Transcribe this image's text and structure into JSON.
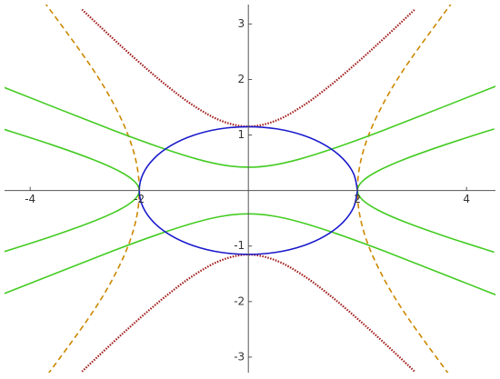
{
  "chart_data": {
    "type": "line",
    "xlim": [
      -4.47,
      4.53
    ],
    "ylim": [
      -3.28,
      3.35
    ],
    "xticks": [
      -4,
      -2,
      2,
      4
    ],
    "yticks": [
      -3,
      -2,
      -1,
      1,
      2,
      3
    ],
    "series": [
      {
        "color": "#cc8800",
        "dash": "dashed",
        "x": [
          3.777,
          2.866,
          2.371,
          2.091,
          2,
          2.091,
          2.371,
          2.866,
          3.777,
          null,
          -3.777,
          -2.866,
          -2.371,
          -2.091,
          -2,
          -2.091,
          -2.371,
          -2.866,
          -3.777
        ],
        "values": [
          -3.444,
          -2.207,
          -1.369,
          -0.655,
          0,
          0.655,
          1.369,
          2.207,
          3.444,
          null,
          -3.444,
          -2.207,
          -1.369,
          -0.655,
          0,
          0.655,
          1.369,
          2.207,
          3.444
        ]
      },
      {
        "color": "#44cc22",
        "dash": "solid",
        "x": [
          4.506,
          3.621,
          2.866,
          2.371,
          2.091,
          2,
          2.091,
          2.371,
          2.866,
          3.621,
          4.506,
          null,
          -4.506,
          -3.621,
          -2.866,
          -2.371,
          -2.091,
          -2,
          -2.091,
          -2.371,
          -2.866,
          -3.621,
          -4.506
        ],
        "values": [
          -1.11,
          -0.83,
          -0.565,
          -0.35,
          -0.167,
          0,
          0.167,
          0.35,
          0.565,
          0.83,
          1.11,
          null,
          -1.11,
          -0.83,
          -0.565,
          -0.35,
          -0.167,
          0,
          0.167,
          0.35,
          0.565,
          0.83,
          1.11
        ]
      },
      {
        "color": "#44cc22",
        "dash": "solid",
        "x": [
          -4.541,
          -2.471,
          -1.57,
          -0.924,
          -0.427,
          0,
          0.427,
          0.924,
          1.57,
          2.471,
          4.541,
          null,
          -4.541,
          -2.471,
          -1.57,
          -0.924,
          -0.427,
          0,
          0.427,
          0.924,
          1.57,
          2.471,
          4.541
        ],
        "values": [
          1.881,
          1.083,
          0.761,
          0.562,
          0.454,
          0.42,
          0.454,
          0.562,
          0.761,
          1.083,
          1.881,
          null,
          -1.881,
          -1.083,
          -0.761,
          -0.562,
          -0.454,
          -0.42,
          -0.454,
          -0.562,
          -0.761,
          -1.083,
          -1.881
        ]
      },
      {
        "color": "#a01818",
        "dash": "dotted",
        "x": [
          -3.05,
          -2.5,
          -2,
          -1.5,
          -1,
          -0.5,
          0,
          0.5,
          1,
          1.5,
          2,
          2.5,
          3.05,
          null,
          -3.05,
          -2.5,
          -2,
          -1.5,
          -1,
          -0.5,
          0,
          0.5,
          1,
          1.5,
          2,
          2.5,
          3.05
        ],
        "values": [
          3.26,
          2.753,
          2.309,
          1.892,
          1.526,
          1.257,
          1.153,
          1.257,
          1.526,
          1.892,
          2.309,
          2.753,
          3.26,
          null,
          -3.26,
          -2.753,
          -2.309,
          -1.892,
          -1.526,
          -1.257,
          -1.153,
          -1.257,
          -1.526,
          -1.892,
          -2.309,
          -2.753,
          -3.26
        ]
      },
      {
        "color": "#1a1acc",
        "dash": "solid",
        "x": [
          2,
          1.932,
          1.732,
          1.414,
          1,
          0.518,
          0,
          -0.518,
          -1,
          -1.414,
          -1.732,
          -1.932,
          -2,
          -1.932,
          -1.732,
          -1.414,
          -1,
          -0.518,
          0,
          0.518,
          1,
          1.414,
          1.732,
          1.932,
          2
        ],
        "values": [
          0,
          0.298,
          0.575,
          0.813,
          0.996,
          1.111,
          1.15,
          1.111,
          0.996,
          0.813,
          0.575,
          0.298,
          0,
          -0.298,
          -0.575,
          -0.813,
          -0.996,
          -1.111,
          -1.15,
          -1.111,
          -0.996,
          -0.813,
          -0.575,
          -0.298,
          0
        ]
      }
    ]
  }
}
